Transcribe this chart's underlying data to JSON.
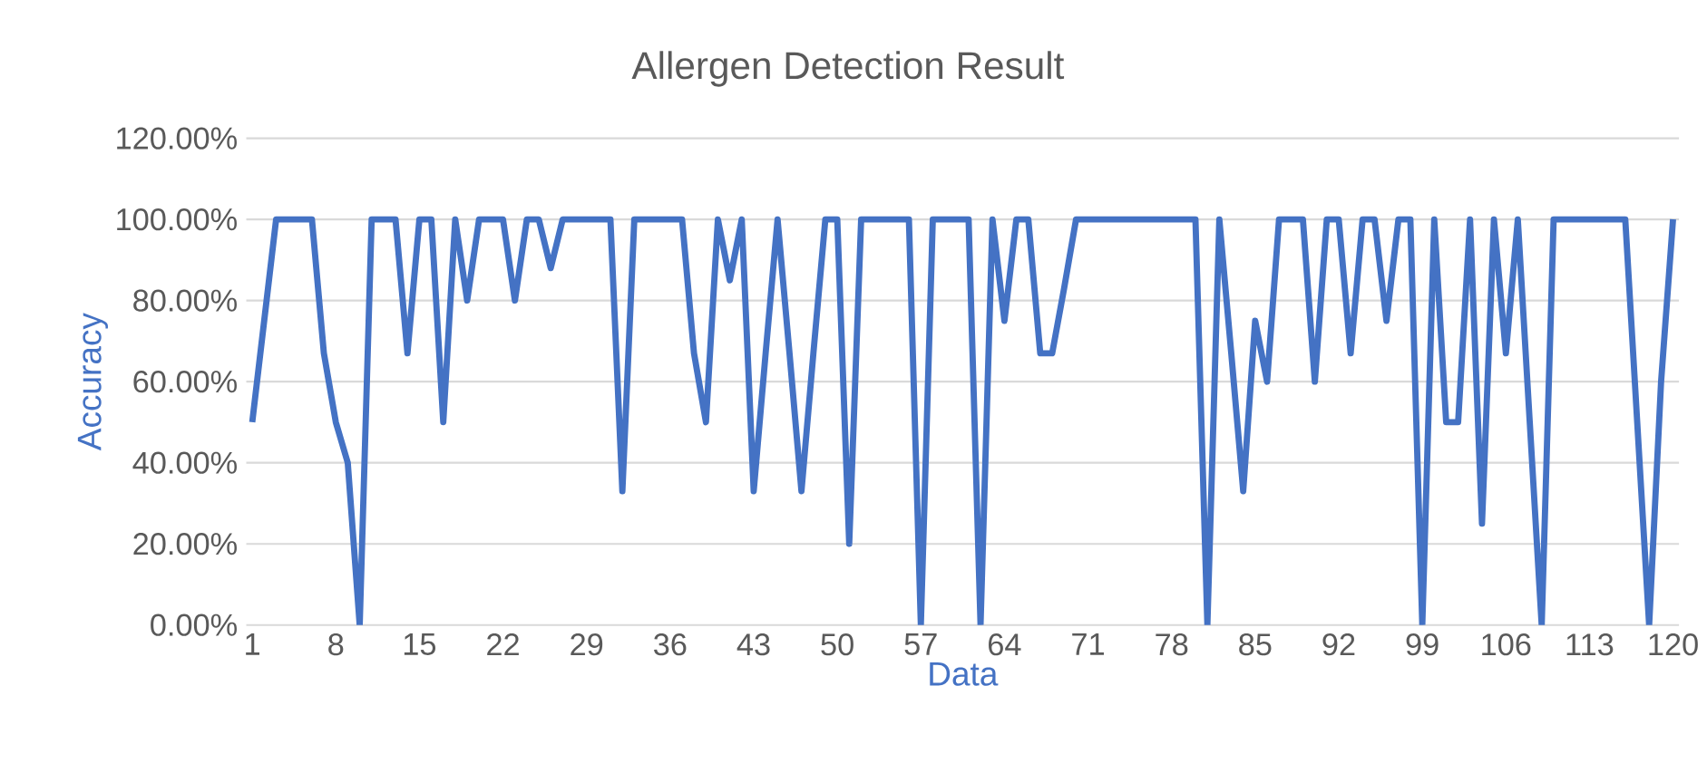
{
  "chart_data": {
    "type": "line",
    "title": "Allergen Detection Result",
    "xlabel": "Data",
    "ylabel": "Accuracy",
    "x": [
      1,
      2,
      3,
      4,
      5,
      6,
      7,
      8,
      9,
      10,
      11,
      12,
      13,
      14,
      15,
      16,
      17,
      18,
      19,
      20,
      21,
      22,
      23,
      24,
      25,
      26,
      27,
      28,
      29,
      30,
      31,
      32,
      33,
      34,
      35,
      36,
      37,
      38,
      39,
      40,
      41,
      42,
      43,
      44,
      45,
      46,
      47,
      48,
      49,
      50,
      51,
      52,
      53,
      54,
      55,
      56,
      57,
      58,
      59,
      60,
      61,
      62,
      63,
      64,
      65,
      66,
      67,
      68,
      69,
      70,
      71,
      72,
      73,
      74,
      75,
      76,
      77,
      78,
      79,
      80,
      81,
      82,
      83,
      84,
      85,
      86,
      87,
      88,
      89,
      90,
      91,
      92,
      93,
      94,
      95,
      96,
      97,
      98,
      99,
      100,
      101,
      102,
      103,
      104,
      105,
      106,
      107,
      108,
      109,
      110,
      111,
      112,
      113,
      114,
      115,
      116,
      117,
      118,
      119,
      120
    ],
    "series": [
      {
        "color": "#4472c4",
        "values": [
          50,
          75,
          100,
          100,
          100,
          100,
          67,
          50,
          40,
          0,
          100,
          100,
          100,
          67,
          100,
          100,
          50,
          100,
          80,
          100,
          100,
          100,
          80,
          100,
          100,
          88,
          100,
          100,
          100,
          100,
          100,
          33,
          100,
          100,
          100,
          100,
          100,
          67,
          50,
          100,
          85,
          100,
          33,
          67,
          100,
          67,
          33,
          67,
          100,
          100,
          20,
          100,
          100,
          100,
          100,
          100,
          0,
          100,
          100,
          100,
          100,
          0,
          100,
          75,
          100,
          100,
          67,
          67,
          83,
          100,
          100,
          100,
          100,
          100,
          100,
          100,
          100,
          100,
          100,
          100,
          0,
          100,
          67,
          33,
          75,
          60,
          100,
          100,
          100,
          60,
          100,
          100,
          67,
          100,
          100,
          75,
          100,
          100,
          0,
          100,
          50,
          50,
          100,
          25,
          100,
          67,
          100,
          50,
          0,
          100,
          100,
          100,
          100,
          100,
          100,
          100,
          50,
          0,
          60,
          100
        ]
      }
    ],
    "xlim": [
      0.5,
      120.5
    ],
    "xticks": [
      1,
      8,
      15,
      22,
      29,
      36,
      43,
      50,
      57,
      64,
      71,
      78,
      85,
      92,
      99,
      106,
      113,
      120
    ],
    "ylim": [
      0,
      120
    ],
    "yticks": [
      {
        "value": 0,
        "label": "0.00%"
      },
      {
        "value": 20,
        "label": "20.00%"
      },
      {
        "value": 40,
        "label": "40.00%"
      },
      {
        "value": 60,
        "label": "60.00%"
      },
      {
        "value": 80,
        "label": "80.00%"
      },
      {
        "value": 100,
        "label": "100.00%"
      },
      {
        "value": 120,
        "label": "120.00%"
      }
    ],
    "grid": "y",
    "marker": "none",
    "line_style": "solid"
  }
}
